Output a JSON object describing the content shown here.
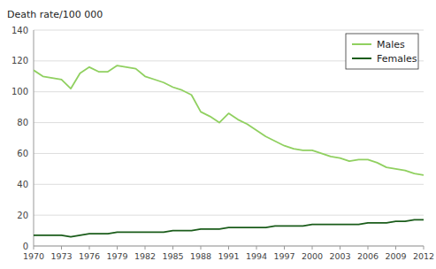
{
  "chart_data": {
    "type": "line",
    "ylabel": "Death rate/100 000",
    "x": [
      1970,
      1971,
      1972,
      1973,
      1974,
      1975,
      1976,
      1977,
      1978,
      1979,
      1980,
      1981,
      1982,
      1983,
      1984,
      1985,
      1986,
      1987,
      1988,
      1989,
      1990,
      1991,
      1992,
      1993,
      1994,
      1995,
      1996,
      1997,
      1998,
      1999,
      2000,
      2001,
      2002,
      2003,
      2004,
      2005,
      2006,
      2007,
      2008,
      2009,
      2010,
      2011,
      2012
    ],
    "series": [
      {
        "name": "Males",
        "color": "#90d060",
        "values": [
          114,
          110,
          109,
          108,
          102,
          112,
          116,
          113,
          113,
          117,
          116,
          115,
          110,
          108,
          106,
          103,
          101,
          98,
          87,
          84,
          80,
          86,
          82,
          79,
          75,
          71,
          68,
          65,
          63,
          62,
          62,
          60,
          58,
          57,
          55,
          56,
          56,
          54,
          51,
          50,
          49,
          47,
          46
        ]
      },
      {
        "name": "Females",
        "color": "#1a5c1a",
        "values": [
          7,
          7,
          7,
          7,
          6,
          7,
          8,
          8,
          8,
          9,
          9,
          9,
          9,
          9,
          9,
          10,
          10,
          10,
          11,
          11,
          11,
          12,
          12,
          12,
          12,
          12,
          13,
          13,
          13,
          13,
          14,
          14,
          14,
          14,
          14,
          14,
          15,
          15,
          15,
          16,
          16,
          17,
          17
        ]
      }
    ],
    "xlim": [
      1970,
      2012
    ],
    "xticks": [
      1970,
      1973,
      1976,
      1979,
      1982,
      1985,
      1988,
      1991,
      1994,
      1997,
      2000,
      2003,
      2006,
      2009,
      2012
    ],
    "ylim": [
      0,
      140
    ],
    "yticks": [
      0,
      20,
      40,
      60,
      80,
      100,
      120,
      140
    ],
    "grid": true,
    "legend": "upper-right"
  }
}
